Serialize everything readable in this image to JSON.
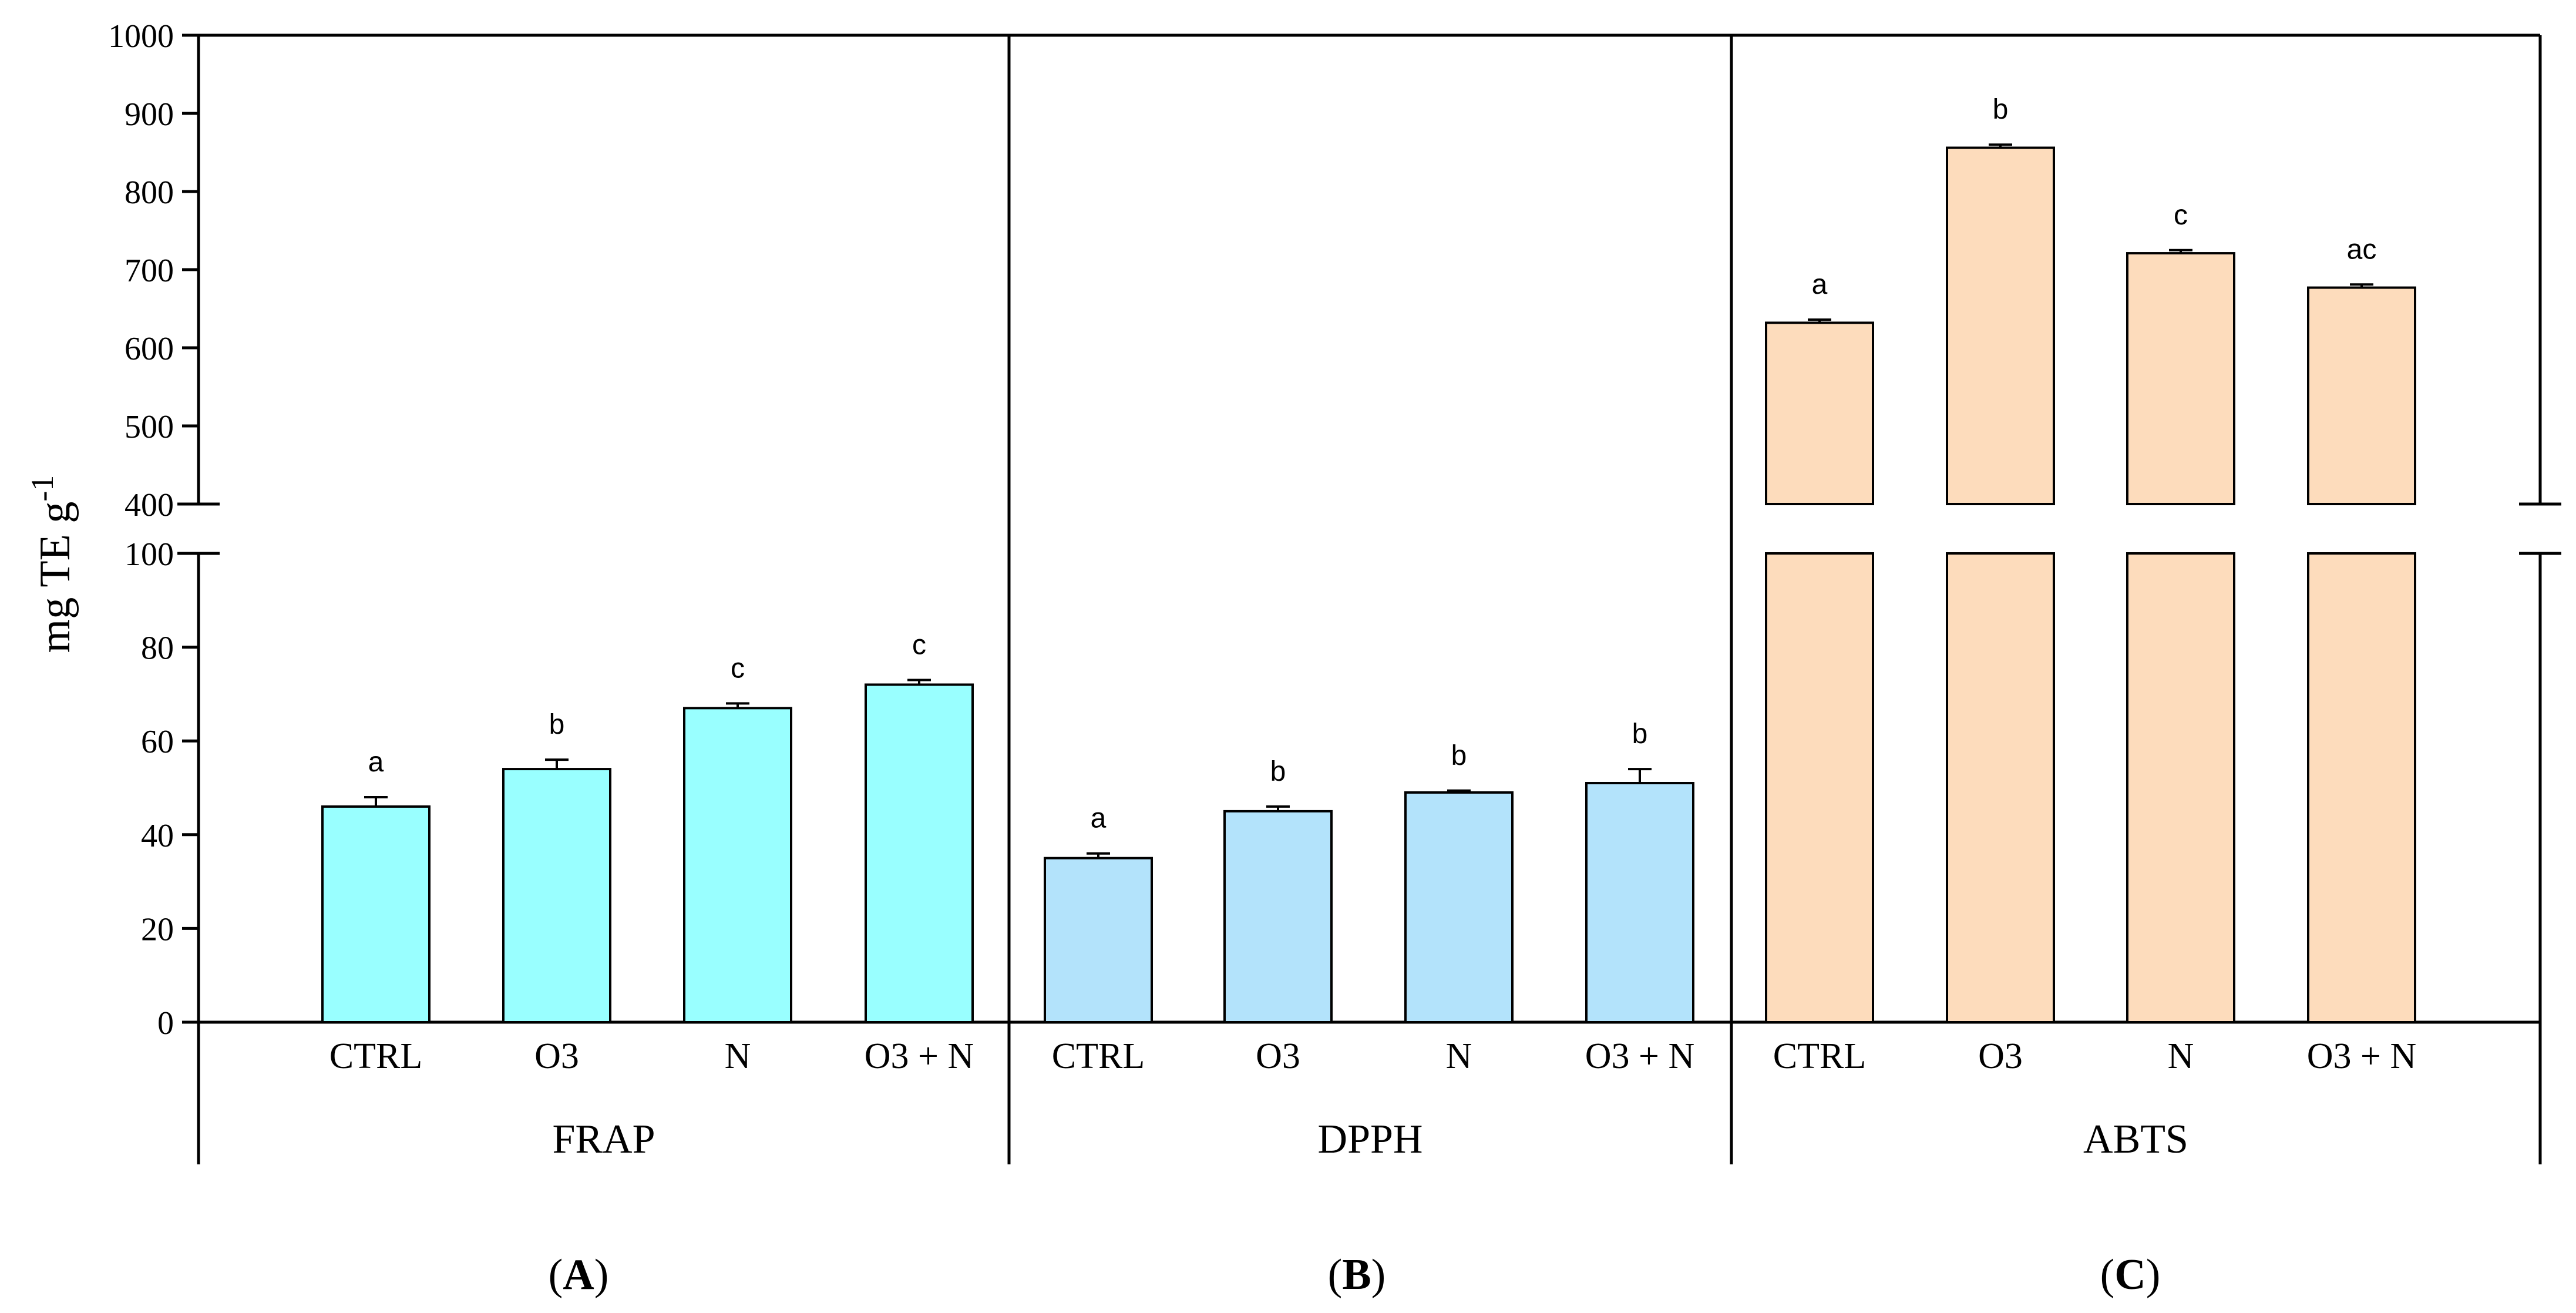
{
  "chart_data": {
    "type": "bar",
    "ylabel": "mg TE g",
    "ylabel_superscript": "-1",
    "y_axis": {
      "broken": true,
      "lower_range": [
        0,
        100
      ],
      "upper_range": [
        400,
        1000
      ],
      "lower_ticks": [
        "0",
        "20",
        "40",
        "60",
        "80",
        "100"
      ],
      "upper_ticks": [
        "400",
        "500",
        "600",
        "700",
        "800",
        "900",
        "1000"
      ]
    },
    "groups": [
      {
        "name": "FRAP",
        "panel": "A",
        "color": "#99ffff",
        "categories": [
          "CTRL",
          "O3",
          "N",
          "O3 + N"
        ],
        "values": [
          46,
          54,
          67,
          72
        ],
        "errors": [
          2,
          2,
          1,
          1
        ],
        "letters": [
          "a",
          "b",
          "c",
          "c"
        ]
      },
      {
        "name": "DPPH",
        "panel": "B",
        "color": "#b3e3fb",
        "categories": [
          "CTRL",
          "O3",
          "N",
          "O3 + N"
        ],
        "values": [
          35,
          45,
          49,
          51
        ],
        "errors": [
          1,
          1,
          0.4,
          3
        ],
        "letters": [
          "a",
          "b",
          "b",
          "b"
        ]
      },
      {
        "name": "ABTS",
        "panel": "C",
        "color": "#fddcbc",
        "categories": [
          "CTRL",
          "O3",
          "N",
          "O3 + N"
        ],
        "values": [
          632,
          856,
          721,
          677
        ],
        "errors": [
          4,
          4,
          4,
          4
        ],
        "letters": [
          "a",
          "b",
          "c",
          "ac"
        ]
      }
    ]
  }
}
